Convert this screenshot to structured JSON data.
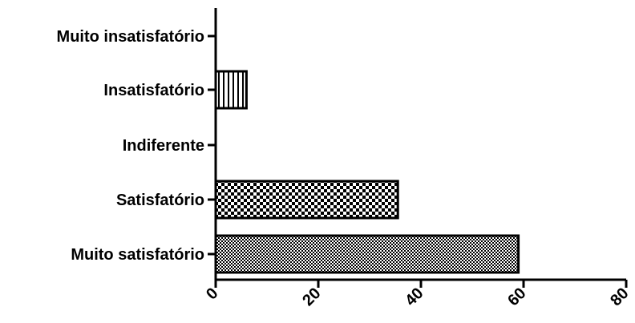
{
  "chart_data": {
    "type": "bar",
    "orientation": "horizontal",
    "categories": [
      "Muito insatisfatório",
      "Insatisfatório",
      "Indiferente",
      "Satisfatório",
      "Muito satisfatório"
    ],
    "values": [
      0,
      6,
      0,
      35.5,
      59
    ],
    "patterns": [
      "none",
      "vertical-lines",
      "none",
      "checkerboard",
      "fine-checkerboard"
    ],
    "xlim": [
      0,
      80
    ],
    "xticks": [
      0,
      20,
      40,
      60,
      80
    ],
    "title": "",
    "xlabel": "",
    "ylabel": "",
    "grid": false,
    "colors": {
      "ink": "#000000",
      "background": "#ffffff"
    }
  }
}
